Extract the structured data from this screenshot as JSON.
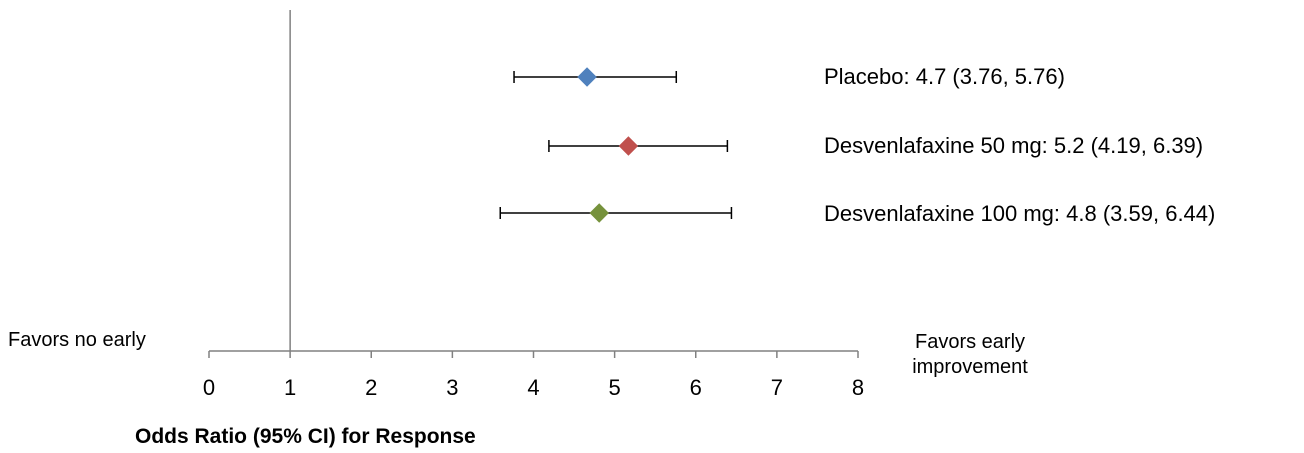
{
  "chart_data": {
    "type": "forest",
    "xlabel": "Odds Ratio (95% CI) for Response",
    "xlim": [
      0,
      8
    ],
    "x_ticks": [
      "0",
      "1",
      "2",
      "3",
      "4",
      "5",
      "6",
      "7",
      "8"
    ],
    "reference_line": 1,
    "left_annotation": "Favors no early",
    "right_annotation": [
      "Favors early",
      "improvement"
    ],
    "series": [
      {
        "name": "Placebo",
        "label": "Placebo:  4.7 (3.76, 5.76)",
        "value": 4.66,
        "ci": [
          3.76,
          5.76
        ],
        "color": "#4f81bd"
      },
      {
        "name": "Desvenlafaxine 50 mg",
        "label": "Desvenlafaxine 50 mg: 5.2 (4.19, 6.39)",
        "value": 5.17,
        "ci": [
          4.19,
          6.39
        ],
        "color": "#c0504d"
      },
      {
        "name": "Desvenlafaxine 100 mg",
        "label": "Desvenlafaxine 100 mg:  4.8 (3.59, 6.44)",
        "value": 4.81,
        "ci": [
          3.59,
          6.44
        ],
        "color": "#76923c"
      }
    ]
  }
}
